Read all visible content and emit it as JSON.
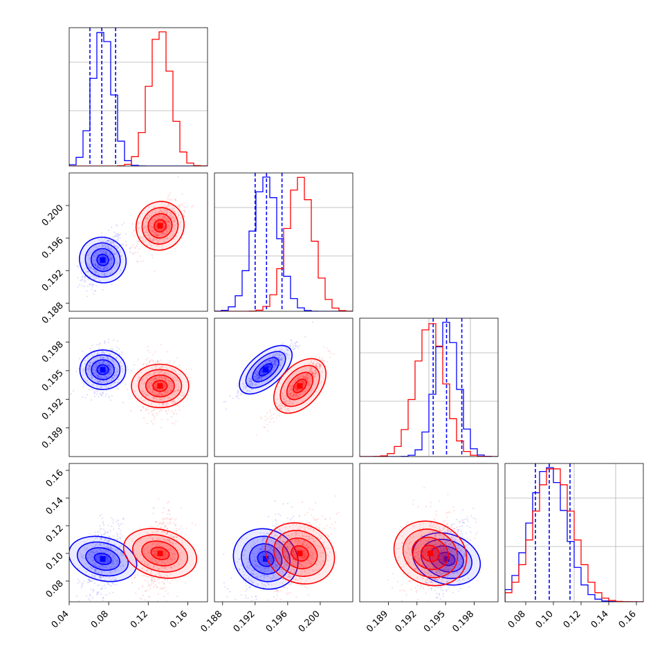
{
  "chart_data": {
    "type": "corner",
    "parameters": 4,
    "axis_ranges": [
      [
        0.04,
        0.18
      ],
      [
        0.187,
        0.204
      ],
      [
        0.186,
        0.2005
      ],
      [
        0.065,
        0.165
      ]
    ],
    "diag_tick_labels": [
      [],
      [],
      [],
      [
        "0.08",
        "0.10",
        "0.12",
        "0.14",
        "0.16"
      ]
    ],
    "bottom_tick_labels": [
      [
        "0.04",
        "0.08",
        "0.12",
        "0.16"
      ],
      [
        "0.188",
        "0.192",
        "0.196",
        "0.200"
      ],
      [
        "0.189",
        "0.192",
        "0.195",
        "0.198"
      ],
      [
        "0.08",
        "0.10",
        "0.12",
        "0.14",
        "0.16"
      ]
    ],
    "bottom_tick_values": [
      [
        0.04,
        0.08,
        0.12,
        0.16
      ],
      [
        0.188,
        0.192,
        0.196,
        0.2
      ],
      [
        0.189,
        0.192,
        0.195,
        0.198
      ],
      [
        0.08,
        0.1,
        0.12,
        0.14,
        0.16
      ]
    ],
    "left_tick_labels": [
      [],
      [
        "0.188",
        "0.192",
        "0.196",
        "0.200"
      ],
      [
        "0.189",
        "0.192",
        "0.195",
        "0.198"
      ],
      [
        "0.08",
        "0.10",
        "0.12",
        "0.14",
        "0.16"
      ]
    ],
    "left_tick_values": [
      [],
      [
        0.188,
        0.192,
        0.196,
        0.2
      ],
      [
        0.189,
        0.192,
        0.195,
        0.198
      ],
      [
        0.08,
        0.1,
        0.12,
        0.14,
        0.16
      ]
    ],
    "series": [
      {
        "color": "#0000ff",
        "mean": [
          0.074,
          0.1933,
          0.1951,
          0.096
        ],
        "std": [
          0.01,
          0.0016,
          0.0012,
          0.013
        ],
        "quantile_lines": [
          [
            0.061,
            0.073,
            0.087
          ],
          [
            0.192,
            0.1934,
            0.1953
          ],
          [
            0.1937,
            0.1951,
            0.1967
          ],
          [
            0.087,
            0.097,
            0.112
          ]
        ]
      },
      {
        "color": "#ff0000",
        "mean": [
          0.132,
          0.1975,
          0.1934,
          0.1
        ],
        "std": [
          0.011,
          0.0016,
          0.0015,
          0.014
        ],
        "quantile_lines": []
      }
    ],
    "grid": true,
    "legend": "none"
  }
}
